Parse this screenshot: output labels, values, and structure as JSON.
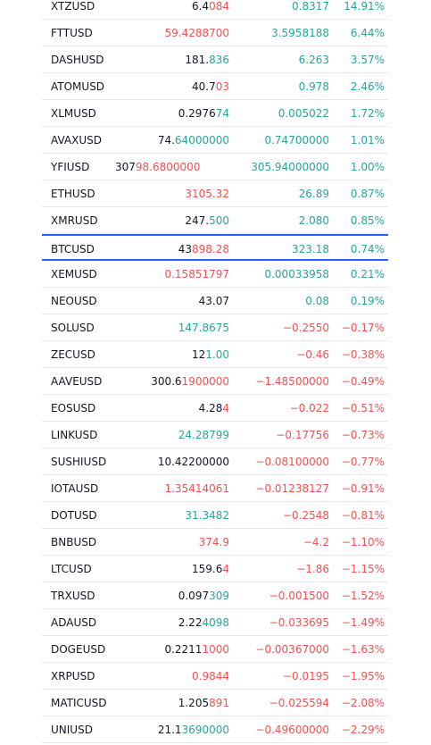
{
  "colors": {
    "up": "#26a69a",
    "down": "#ef5350",
    "neutral": "#131722",
    "highlight": "#2962ff"
  },
  "rows": [
    {
      "symbol": "XTZUSD",
      "last_a": "6.4",
      "last_b": "084",
      "last_color": "down",
      "change": "0.8317",
      "change_color": "up",
      "pct": "14.91%",
      "pct_color": "up"
    },
    {
      "symbol": "FTTUSD",
      "last_a": "",
      "last_b": "59.4288700",
      "last_color": "down",
      "change": "3.5958188",
      "change_color": "up",
      "pct": "6.44%",
      "pct_color": "up"
    },
    {
      "symbol": "DASHUSD",
      "last_a": "181.",
      "last_b": "836",
      "last_color": "up",
      "change": "6.263",
      "change_color": "up",
      "pct": "3.57%",
      "pct_color": "up"
    },
    {
      "symbol": "ATOMUSD",
      "last_a": "40.7",
      "last_b": "03",
      "last_color": "down",
      "change": "0.978",
      "change_color": "up",
      "pct": "2.46%",
      "pct_color": "up"
    },
    {
      "symbol": "XLMUSD",
      "last_a": "0.2976",
      "last_b": "74",
      "last_color": "up",
      "change": "0.005022",
      "change_color": "up",
      "pct": "1.72%",
      "pct_color": "up"
    },
    {
      "symbol": "AVAXUSD",
      "last_a": "74.",
      "last_b": "64000000",
      "last_color": "up",
      "change": "0.74700000",
      "change_color": "up",
      "pct": "1.01%",
      "pct_color": "up"
    },
    {
      "symbol": "YFIUSD",
      "last_a": "307",
      "last_b": "98.6800000",
      "last_color": "down",
      "change": "305.94000000",
      "change_color": "up",
      "pct": "1.00%",
      "pct_color": "up",
      "clip": true
    },
    {
      "symbol": "ETHUSD",
      "last_a": "",
      "last_b": "3105.32",
      "last_color": "down",
      "change": "26.89",
      "change_color": "up",
      "pct": "0.87%",
      "pct_color": "up"
    },
    {
      "symbol": "XMRUSD",
      "last_a": "247.",
      "last_b": "500",
      "last_color": "up",
      "change": "2.080",
      "change_color": "up",
      "pct": "0.85%",
      "pct_color": "up"
    },
    {
      "symbol": "BTCUSD",
      "last_a": "43",
      "last_b": "898.28",
      "last_color": "down",
      "change": "323.18",
      "change_color": "up",
      "pct": "0.74%",
      "pct_color": "up",
      "current": true
    },
    {
      "symbol": "XEMUSD",
      "last_a": "",
      "last_b": "0.15851797",
      "last_color": "down",
      "change": "0.00033958",
      "change_color": "up",
      "pct": "0.21%",
      "pct_color": "up"
    },
    {
      "symbol": "NEOUSD",
      "last_a": "43.07",
      "last_b": "",
      "last_color": "neutral",
      "change": "0.08",
      "change_color": "up",
      "pct": "0.19%",
      "pct_color": "up"
    },
    {
      "symbol": "SOLUSD",
      "last_a": "",
      "last_b": "147.8675",
      "last_color": "up",
      "change": "−0.2550",
      "change_color": "down",
      "pct": "−0.17%",
      "pct_color": "down"
    },
    {
      "symbol": "ZECUSD",
      "last_a": "12",
      "last_b": "1.00",
      "last_color": "up",
      "change": "−0.46",
      "change_color": "down",
      "pct": "−0.38%",
      "pct_color": "down"
    },
    {
      "symbol": "AAVEUSD",
      "last_a": "300.6",
      "last_b": "1900000",
      "last_color": "down",
      "change": "−1.48500000",
      "change_color": "down",
      "pct": "−0.49%",
      "pct_color": "down"
    },
    {
      "symbol": "EOSUSD",
      "last_a": "4.28",
      "last_b": "4",
      "last_color": "down",
      "change": "−0.022",
      "change_color": "down",
      "pct": "−0.51%",
      "pct_color": "down"
    },
    {
      "symbol": "LINKUSD",
      "last_a": "",
      "last_b": "24.28799",
      "last_color": "up",
      "change": "−0.17756",
      "change_color": "down",
      "pct": "−0.73%",
      "pct_color": "down"
    },
    {
      "symbol": "SUSHIUSD",
      "last_a": "10.42200000",
      "last_b": "",
      "last_color": "neutral",
      "change": "−0.08100000",
      "change_color": "down",
      "pct": "−0.77%",
      "pct_color": "down"
    },
    {
      "symbol": "IOTAUSD",
      "last_a": "",
      "last_b": "1.35414061",
      "last_color": "down",
      "change": "−0.01238127",
      "change_color": "down",
      "pct": "−0.91%",
      "pct_color": "down"
    },
    {
      "symbol": "DOTUSD",
      "last_a": "",
      "last_b": "31.3482",
      "last_color": "up",
      "change": "−0.2548",
      "change_color": "down",
      "pct": "−0.81%",
      "pct_color": "down"
    },
    {
      "symbol": "BNBUSD",
      "last_a": "",
      "last_b": "374.9",
      "last_color": "down",
      "change": "−4.2",
      "change_color": "down",
      "pct": "−1.10%",
      "pct_color": "down"
    },
    {
      "symbol": "LTCUSD",
      "last_a": "159.6",
      "last_b": "4",
      "last_color": "down",
      "change": "−1.86",
      "change_color": "down",
      "pct": "−1.15%",
      "pct_color": "down"
    },
    {
      "symbol": "TRXUSD",
      "last_a": "0.097",
      "last_b": "309",
      "last_color": "up",
      "change": "−0.001500",
      "change_color": "down",
      "pct": "−1.52%",
      "pct_color": "down"
    },
    {
      "symbol": "ADAUSD",
      "last_a": "2.22",
      "last_b": "4098",
      "last_color": "up",
      "change": "−0.033695",
      "change_color": "down",
      "pct": "−1.49%",
      "pct_color": "down"
    },
    {
      "symbol": "DOGEUSD",
      "last_a": "0.2211",
      "last_b": "1000",
      "last_color": "down",
      "change": "−0.00367000",
      "change_color": "down",
      "pct": "−1.63%",
      "pct_color": "down"
    },
    {
      "symbol": "XRPUSD",
      "last_a": "",
      "last_b": "0.9844",
      "last_color": "down",
      "change": "−0.0195",
      "change_color": "down",
      "pct": "−1.95%",
      "pct_color": "down"
    },
    {
      "symbol": "MATICUSD",
      "last_a": "1.205",
      "last_b": "891",
      "last_color": "down",
      "change": "−0.025594",
      "change_color": "down",
      "pct": "−2.08%",
      "pct_color": "down"
    },
    {
      "symbol": "UNIUSD",
      "last_a": "21.1",
      "last_b": "3690000",
      "last_color": "up",
      "change": "−0.49600000",
      "change_color": "down",
      "pct": "−2.29%",
      "pct_color": "down"
    }
  ]
}
